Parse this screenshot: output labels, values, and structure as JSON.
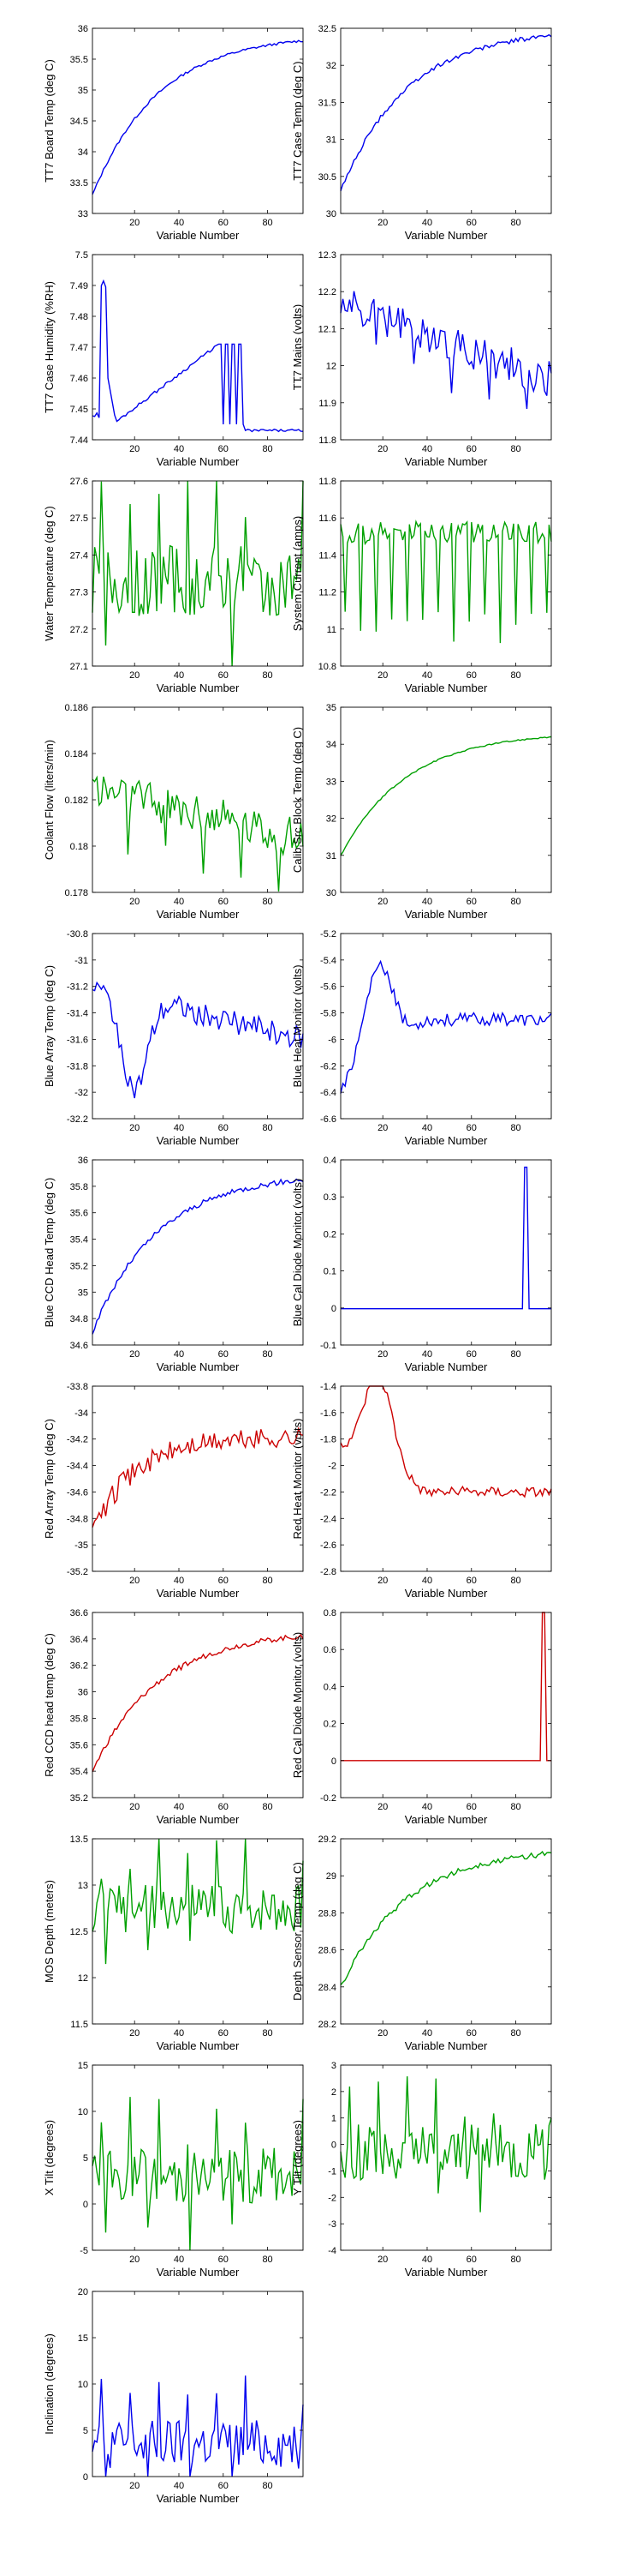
{
  "figure": {
    "background": "#ffffff"
  },
  "chart_data": [
    {
      "type": "line",
      "ylabel": "TT7 Board Temp (deg C)",
      "xlabel": "Variable Number",
      "xlim": [
        1,
        96
      ],
      "ylim": [
        33,
        36
      ],
      "xticks": [
        20,
        40,
        60,
        80
      ],
      "yticks": [
        "33",
        "33.5",
        "34",
        "34.5",
        "35",
        "35.5",
        "36"
      ],
      "series": [
        {
          "color": "#0000ee",
          "shape": "rise",
          "start": 33.3,
          "end": 35.8,
          "noise": 0.02
        }
      ]
    },
    {
      "type": "line",
      "ylabel": "TT7 Case Temp (deg C)",
      "xlabel": "Variable Number",
      "xlim": [
        1,
        96
      ],
      "ylim": [
        30,
        32.5
      ],
      "xticks": [
        20,
        40,
        60,
        80
      ],
      "yticks": [
        "30",
        "30.5",
        "31",
        "31.5",
        "32",
        "32.5"
      ],
      "series": [
        {
          "color": "#0000ee",
          "shape": "rise",
          "start": 30.3,
          "end": 32.4,
          "noise": 0.03
        }
      ]
    },
    {
      "type": "line",
      "ylabel": "TT7 Case Humidity (%RH)",
      "xlabel": "Variable Number",
      "xlim": [
        1,
        96
      ],
      "ylim": [
        7.44,
        7.5
      ],
      "xticks": [
        20,
        40,
        60,
        80
      ],
      "yticks": [
        "7.44",
        "7.45",
        "7.46",
        "7.47",
        "7.48",
        "7.49",
        "7.5"
      ],
      "series": [
        {
          "color": "#0000ee",
          "shape": "humidity",
          "start": 7.445,
          "end": 7.471,
          "noise": 0.001
        }
      ]
    },
    {
      "type": "line",
      "ylabel": "TT7 Mains  (volts)",
      "xlabel": "Variable Number",
      "xlim": [
        1,
        96
      ],
      "ylim": [
        11.8,
        12.3
      ],
      "xticks": [
        20,
        40,
        60,
        80
      ],
      "yticks": [
        "11.8",
        "11.9",
        "12",
        "12.1",
        "12.2",
        "12.3"
      ],
      "series": [
        {
          "color": "#0000ee",
          "shape": "decline",
          "start": 12.17,
          "end": 11.96,
          "noise": 0.05
        }
      ]
    },
    {
      "type": "line",
      "ylabel": "Water Temperature (deg C)",
      "xlabel": "Variable Number",
      "xlim": [
        1,
        96
      ],
      "ylim": [
        27.1,
        27.6
      ],
      "xticks": [
        20,
        40,
        60,
        80
      ],
      "yticks": [
        "27.1",
        "27.2",
        "27.3",
        "27.4",
        "27.5",
        "27.6"
      ],
      "series": [
        {
          "color": "#00a000",
          "shape": "noise",
          "start": 27.33,
          "end": 27.33,
          "noise": 0.08
        }
      ]
    },
    {
      "type": "line",
      "ylabel": "System Current (amps)",
      "xlabel": "Variable Number",
      "xlim": [
        1,
        96
      ],
      "ylim": [
        10.8,
        11.8
      ],
      "xticks": [
        20,
        40,
        60,
        80
      ],
      "yticks": [
        "10.8",
        "11",
        "11.2",
        "11.4",
        "11.6",
        "11.8"
      ],
      "series": [
        {
          "color": "#00a000",
          "shape": "dips",
          "start": 11.52,
          "end": 11.52,
          "noise": 0.06
        }
      ]
    },
    {
      "type": "line",
      "ylabel": "Coolant Flow (liters/min)",
      "xlabel": "Variable Number",
      "xlim": [
        1,
        96
      ],
      "ylim": [
        0.178,
        0.186
      ],
      "xticks": [
        20,
        40,
        60,
        80
      ],
      "yticks": [
        "0.178",
        "0.18",
        "0.182",
        "0.184",
        "0.186"
      ],
      "series": [
        {
          "color": "#00a000",
          "shape": "decline",
          "start": 0.1825,
          "end": 0.1803,
          "noise": 0.0009
        }
      ]
    },
    {
      "type": "line",
      "ylabel": "Calib Src Block Temp (deg C)",
      "xlabel": "Variable Number",
      "xlim": [
        1,
        96
      ],
      "ylim": [
        30,
        35
      ],
      "xticks": [
        20,
        40,
        60,
        80
      ],
      "yticks": [
        "30",
        "31",
        "32",
        "33",
        "34",
        "35"
      ],
      "series": [
        {
          "color": "#00a000",
          "shape": "rise",
          "start": 31.0,
          "end": 34.2,
          "noise": 0.02
        }
      ]
    },
    {
      "type": "line",
      "ylabel": "Blue Array Temp (deg C)",
      "xlabel": "Variable Number",
      "xlim": [
        1,
        96
      ],
      "ylim": [
        -32.2,
        -30.8
      ],
      "xticks": [
        20,
        40,
        60,
        80
      ],
      "yticks": [
        "-32.2",
        "-32",
        "-31.8",
        "-31.6",
        "-31.4",
        "-31.2",
        "-31",
        "-30.8"
      ],
      "series": [
        {
          "color": "#0000ee",
          "shape": "dipRecover",
          "start": -31.2,
          "end": -31.6,
          "noise": 0.09
        }
      ]
    },
    {
      "type": "line",
      "ylabel": "Blue Heat Monitor (volts)",
      "xlabel": "Variable Number",
      "xlim": [
        1,
        96
      ],
      "ylim": [
        -6.6,
        -5.2
      ],
      "xticks": [
        20,
        40,
        60,
        80
      ],
      "yticks": [
        "-6.6",
        "-6.4",
        "-6.2",
        "-6",
        "-5.8",
        "-5.6",
        "-5.4",
        "-5.2"
      ],
      "series": [
        {
          "color": "#0000ee",
          "shape": "peak",
          "start": -6.4,
          "end": -5.85,
          "noise": 0.05
        }
      ]
    },
    {
      "type": "line",
      "ylabel": "Blue CCD Head Temp (deg C)",
      "xlabel": "Variable Number",
      "xlim": [
        1,
        96
      ],
      "ylim": [
        34.6,
        36
      ],
      "xticks": [
        20,
        40,
        60,
        80
      ],
      "yticks": [
        "34.6",
        "34.8",
        "35",
        "35.2",
        "35.4",
        "35.6",
        "35.8",
        "36"
      ],
      "series": [
        {
          "color": "#0000ee",
          "shape": "rise",
          "start": 34.7,
          "end": 35.85,
          "noise": 0.02
        }
      ]
    },
    {
      "type": "line",
      "ylabel": "Blue Cal Diode Monitor (volts)",
      "xlabel": "Variable Number",
      "xlim": [
        1,
        96
      ],
      "ylim": [
        -0.1,
        0.4
      ],
      "xticks": [
        20,
        40,
        60,
        80
      ],
      "yticks": [
        "-0.1",
        "0",
        "0.1",
        "0.2",
        "0.3",
        "0.4"
      ],
      "series": [
        {
          "color": "#0000ee",
          "shape": "spike",
          "start": -0.002,
          "end": -0.002,
          "noise": 0,
          "spikeAt": 84,
          "spikeVal": 0.38
        }
      ]
    },
    {
      "type": "line",
      "ylabel": "Red Array Temp (deg C)",
      "xlabel": "Variable Number",
      "xlim": [
        1,
        96
      ],
      "ylim": [
        -35.2,
        -33.8
      ],
      "xticks": [
        20,
        40,
        60,
        80
      ],
      "yticks": [
        "-35.2",
        "-35",
        "-34.8",
        "-34.6",
        "-34.4",
        "-34.2",
        "-34",
        "-33.8"
      ],
      "series": [
        {
          "color": "#cc0000",
          "shape": "redArray",
          "start": -34.9,
          "end": -34.3,
          "noise": 0.08
        }
      ]
    },
    {
      "type": "line",
      "ylabel": "Red Heat Monitor (volts)",
      "xlabel": "Variable Number",
      "xlim": [
        1,
        96
      ],
      "ylim": [
        -2.8,
        -1.4
      ],
      "xticks": [
        20,
        40,
        60,
        80
      ],
      "yticks": [
        "-2.8",
        "-2.6",
        "-2.4",
        "-2.2",
        "-2",
        "-1.8",
        "-1.6",
        "-1.4"
      ],
      "series": [
        {
          "color": "#cc0000",
          "shape": "peak",
          "start": -1.85,
          "end": -2.2,
          "noise": 0.04
        }
      ]
    },
    {
      "type": "line",
      "ylabel": "Red CCD head temp (deg C)",
      "xlabel": "Variable Number",
      "xlim": [
        1,
        96
      ],
      "ylim": [
        35.2,
        36.6
      ],
      "xticks": [
        20,
        40,
        60,
        80
      ],
      "yticks": [
        "35.2",
        "35.4",
        "35.6",
        "35.8",
        "36",
        "36.2",
        "36.4",
        "36.6"
      ],
      "series": [
        {
          "color": "#cc0000",
          "shape": "rise",
          "start": 35.4,
          "end": 36.42,
          "noise": 0.02
        }
      ]
    },
    {
      "type": "line",
      "ylabel": "Red Cal Diode Monitor (volts)",
      "xlabel": "Variable Number",
      "xlim": [
        1,
        96
      ],
      "ylim": [
        -0.2,
        0.8
      ],
      "xticks": [
        20,
        40,
        60,
        80
      ],
      "yticks": [
        "-0.2",
        "0",
        "0.2",
        "0.4",
        "0.6",
        "0.8"
      ],
      "series": [
        {
          "color": "#cc0000",
          "shape": "spike",
          "start": 0,
          "end": 0,
          "noise": 0,
          "spikeAt": 92,
          "spikeVal": 0.8
        }
      ]
    },
    {
      "type": "line",
      "ylabel": "MOS Depth  (meters)",
      "xlabel": "Variable Number",
      "xlim": [
        1,
        96
      ],
      "ylim": [
        11.5,
        13.5
      ],
      "xticks": [
        20,
        40,
        60,
        80
      ],
      "yticks": [
        "11.5",
        "12",
        "12.5",
        "13",
        "13.5"
      ],
      "series": [
        {
          "color": "#00a000",
          "shape": "noise",
          "start": 12.75,
          "end": 12.75,
          "noise": 0.22
        }
      ]
    },
    {
      "type": "line",
      "ylabel": "Depth Sensor Temp (deg C)",
      "xlabel": "Variable Number",
      "xlim": [
        1,
        96
      ],
      "ylim": [
        28.2,
        29.2
      ],
      "xticks": [
        20,
        40,
        60,
        80
      ],
      "yticks": [
        "28.2",
        "28.4",
        "28.6",
        "28.8",
        "29",
        "29.2"
      ],
      "series": [
        {
          "color": "#00a000",
          "shape": "rise",
          "start": 28.4,
          "end": 29.12,
          "noise": 0.015
        }
      ]
    },
    {
      "type": "line",
      "ylabel": "X Tilt  (degrees)",
      "xlabel": "Variable Number",
      "xlim": [
        1,
        96
      ],
      "ylim": [
        -5,
        15
      ],
      "xticks": [
        20,
        40,
        60,
        80
      ],
      "yticks": [
        "-5",
        "0",
        "5",
        "10",
        "15"
      ],
      "series": [
        {
          "color": "#00a000",
          "shape": "noise",
          "start": 3,
          "end": 3,
          "noise": 2.5
        }
      ]
    },
    {
      "type": "line",
      "ylabel": "Y Tilt  (degrees)",
      "xlabel": "Variable Number",
      "xlim": [
        1,
        96
      ],
      "ylim": [
        -4,
        3
      ],
      "xticks": [
        20,
        40,
        60,
        80
      ],
      "yticks": [
        "-4",
        "-3",
        "-2",
        "-1",
        "0",
        "1",
        "2",
        "3"
      ],
      "series": [
        {
          "color": "#00a000",
          "shape": "noise",
          "start": -0.3,
          "end": -0.3,
          "noise": 0.9
        }
      ]
    },
    {
      "type": "line",
      "ylabel": "Inclination  (degrees)",
      "xlabel": "Variable Number",
      "xlim": [
        1,
        96
      ],
      "ylim": [
        0,
        20
      ],
      "xticks": [
        20,
        40,
        60,
        80
      ],
      "yticks": [
        "0",
        "5",
        "10",
        "15",
        "20"
      ],
      "series": [
        {
          "color": "#0000ee",
          "shape": "noise",
          "start": 3.5,
          "end": 3.5,
          "noise": 2.2
        }
      ]
    }
  ]
}
